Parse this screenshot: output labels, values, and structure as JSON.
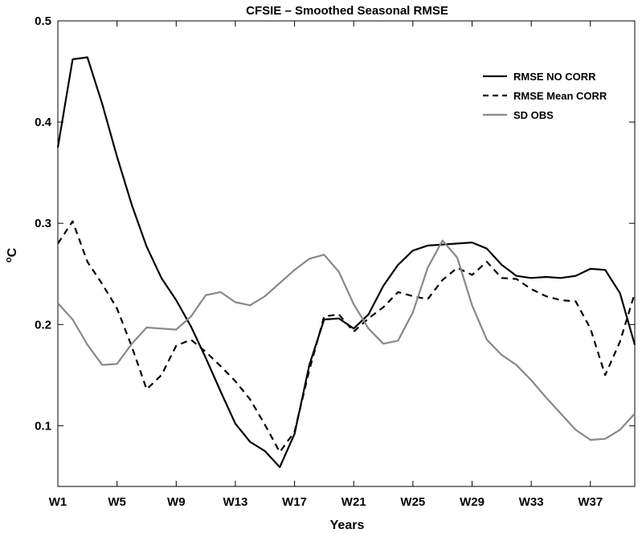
{
  "chart_data": {
    "type": "line",
    "title": "CFSIE – Smoothed Seasonal RMSE",
    "xlabel": "Years",
    "ylabel_main": "C",
    "ylabel_degree": "o",
    "xlim": [
      0,
      39
    ],
    "ylim": [
      0.04,
      0.5
    ],
    "xtick_positions": [
      0,
      4,
      8,
      12,
      16,
      20,
      24,
      28,
      32,
      36
    ],
    "xtick_labels": [
      "W1",
      "W5",
      "W9",
      "W13",
      "W17",
      "W21",
      "W25",
      "W29",
      "W33",
      "W37"
    ],
    "yticks": [
      0.1,
      0.2,
      0.3,
      0.4,
      0.5
    ],
    "ytick_labels": [
      "0.1",
      "0.2",
      "0.3",
      "0.4",
      "0.5"
    ],
    "legend_position": "top-right",
    "grid": false,
    "series": [
      {
        "name": "RMSE NO CORR",
        "color": "#000000",
        "dash": "solid",
        "x": [
          0,
          1,
          2,
          3,
          4,
          5,
          6,
          7,
          8,
          9,
          10,
          11,
          12,
          13,
          14,
          15,
          16,
          17,
          18,
          19,
          20,
          21,
          22,
          23,
          24,
          25,
          26,
          27,
          28,
          29,
          30,
          31,
          32,
          33,
          34,
          35,
          36,
          37,
          38,
          39
        ],
        "values": [
          0.375,
          0.462,
          0.464,
          0.418,
          0.366,
          0.318,
          0.277,
          0.246,
          0.224,
          0.198,
          0.167,
          0.134,
          0.102,
          0.084,
          0.075,
          0.059,
          0.092,
          0.16,
          0.205,
          0.206,
          0.196,
          0.21,
          0.238,
          0.259,
          0.273,
          0.278,
          0.279,
          0.28,
          0.281,
          0.275,
          0.259,
          0.248,
          0.246,
          0.247,
          0.246,
          0.248,
          0.255,
          0.254,
          0.231,
          0.18
        ]
      },
      {
        "name": "RMSE Mean CORR",
        "color": "#000000",
        "dash": "dashed",
        "x": [
          0,
          1,
          2,
          3,
          4,
          5,
          6,
          7,
          8,
          9,
          10,
          11,
          12,
          13,
          14,
          15,
          16,
          17,
          18,
          19,
          20,
          21,
          22,
          23,
          24,
          25,
          26,
          27,
          28,
          29,
          30,
          31,
          32,
          33,
          34,
          35,
          36,
          37,
          38,
          39
        ],
        "values": [
          0.28,
          0.302,
          0.262,
          0.24,
          0.216,
          0.178,
          0.136,
          0.15,
          0.179,
          0.185,
          0.173,
          0.159,
          0.144,
          0.126,
          0.101,
          0.074,
          0.094,
          0.155,
          0.208,
          0.21,
          0.193,
          0.206,
          0.217,
          0.232,
          0.228,
          0.225,
          0.244,
          0.256,
          0.249,
          0.262,
          0.246,
          0.245,
          0.235,
          0.228,
          0.224,
          0.223,
          0.196,
          0.15,
          0.183,
          0.231
        ]
      },
      {
        "name": "SD OBS",
        "color": "#888888",
        "dash": "solid",
        "x": [
          0,
          1,
          2,
          3,
          4,
          5,
          6,
          7,
          8,
          9,
          10,
          11,
          12,
          13,
          14,
          15,
          16,
          17,
          18,
          19,
          20,
          21,
          22,
          23,
          24,
          25,
          26,
          27,
          28,
          29,
          30,
          31,
          32,
          33,
          34,
          35,
          36,
          37,
          38,
          39
        ],
        "values": [
          0.221,
          0.205,
          0.18,
          0.16,
          0.161,
          0.181,
          0.197,
          0.196,
          0.195,
          0.208,
          0.229,
          0.232,
          0.222,
          0.219,
          0.228,
          0.241,
          0.254,
          0.265,
          0.269,
          0.252,
          0.22,
          0.196,
          0.181,
          0.184,
          0.212,
          0.256,
          0.283,
          0.266,
          0.219,
          0.185,
          0.17,
          0.16,
          0.145,
          0.128,
          0.112,
          0.096,
          0.086,
          0.087,
          0.096,
          0.112
        ]
      }
    ]
  }
}
